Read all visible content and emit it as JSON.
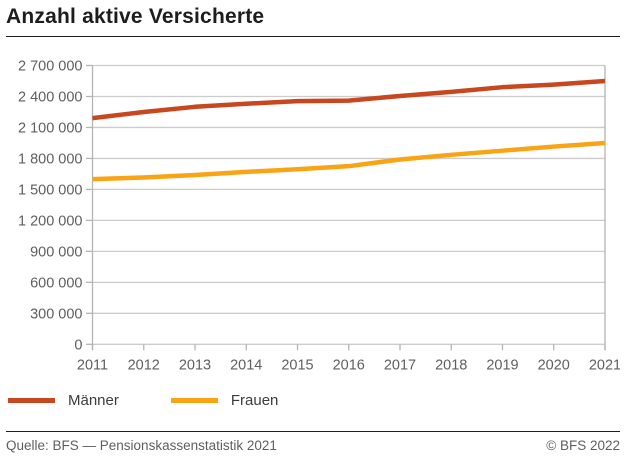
{
  "title": "Anzahl aktive Versicherte",
  "legend": {
    "items": [
      {
        "label": "Männer",
        "color": "#c8471e"
      },
      {
        "label": "Frauen",
        "color": "#f9a414"
      }
    ]
  },
  "footer": {
    "source": "Quelle: BFS — Pensionskassenstatistik 2021",
    "copyright": "© BFS 2022"
  },
  "chart_data": {
    "type": "line",
    "title": "Anzahl aktive Versicherte",
    "xlabel": "",
    "ylabel": "",
    "x": [
      2011,
      2012,
      2013,
      2014,
      2015,
      2016,
      2017,
      2018,
      2019,
      2020,
      2021
    ],
    "series": [
      {
        "name": "Männer",
        "color": "#c8471e",
        "values": [
          2190000,
          2250000,
          2300000,
          2330000,
          2355000,
          2360000,
          2405000,
          2445000,
          2490000,
          2515000,
          2550000
        ]
      },
      {
        "name": "Frauen",
        "color": "#f9a414",
        "values": [
          1600000,
          1615000,
          1640000,
          1670000,
          1695000,
          1725000,
          1790000,
          1835000,
          1875000,
          1915000,
          1950000
        ]
      }
    ],
    "ylim": [
      0,
      2700000
    ],
    "ytick_step": 300000,
    "ytick_labels": [
      "0",
      "300 000",
      "600 000",
      "900 000",
      "1 200 000",
      "1 500 000",
      "1 800 000",
      "2 100 000",
      "2 400 000",
      "2 700 000"
    ],
    "grid": "horizontal",
    "legend_position": "bottom-left",
    "colors": {
      "gridline": "#cccccc",
      "axis": "#b4b4b4",
      "tick_label": "#5f5f5f"
    }
  }
}
